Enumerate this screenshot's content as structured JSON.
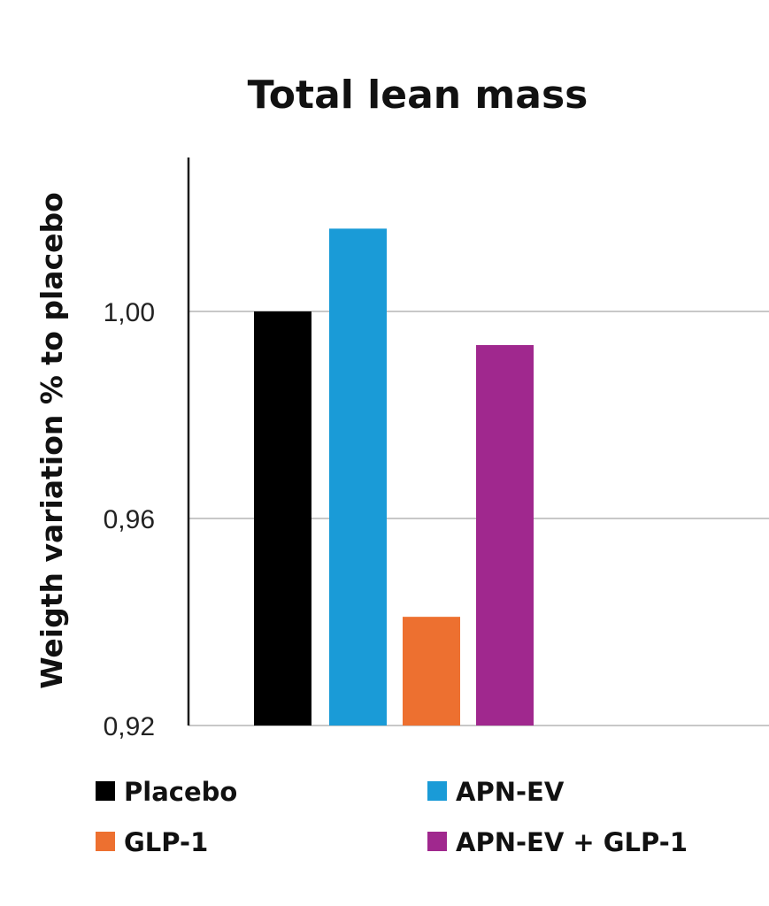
{
  "chart_data": {
    "type": "bar",
    "title": "Total lean mass",
    "xlabel": "",
    "ylabel": "Weigth variation % to placebo",
    "ylim": [
      0.92,
      1.03
    ],
    "yticks": [
      {
        "value": 0.92,
        "label": "0,92"
      },
      {
        "value": 0.96,
        "label": "0,96"
      },
      {
        "value": 1.0,
        "label": "1,00"
      }
    ],
    "grid": true,
    "legend_position": "bottom",
    "series": [
      {
        "name": "Placebo",
        "value": 1.0,
        "color": "#000000"
      },
      {
        "name": "APN-EV",
        "value": 1.016,
        "color": "#1a9bd7"
      },
      {
        "name": "GLP-1",
        "value": 0.941,
        "color": "#ed7030"
      },
      {
        "name": "APN-EV + GLP-1",
        "value": 0.9935,
        "color": "#a0288e"
      }
    ]
  }
}
